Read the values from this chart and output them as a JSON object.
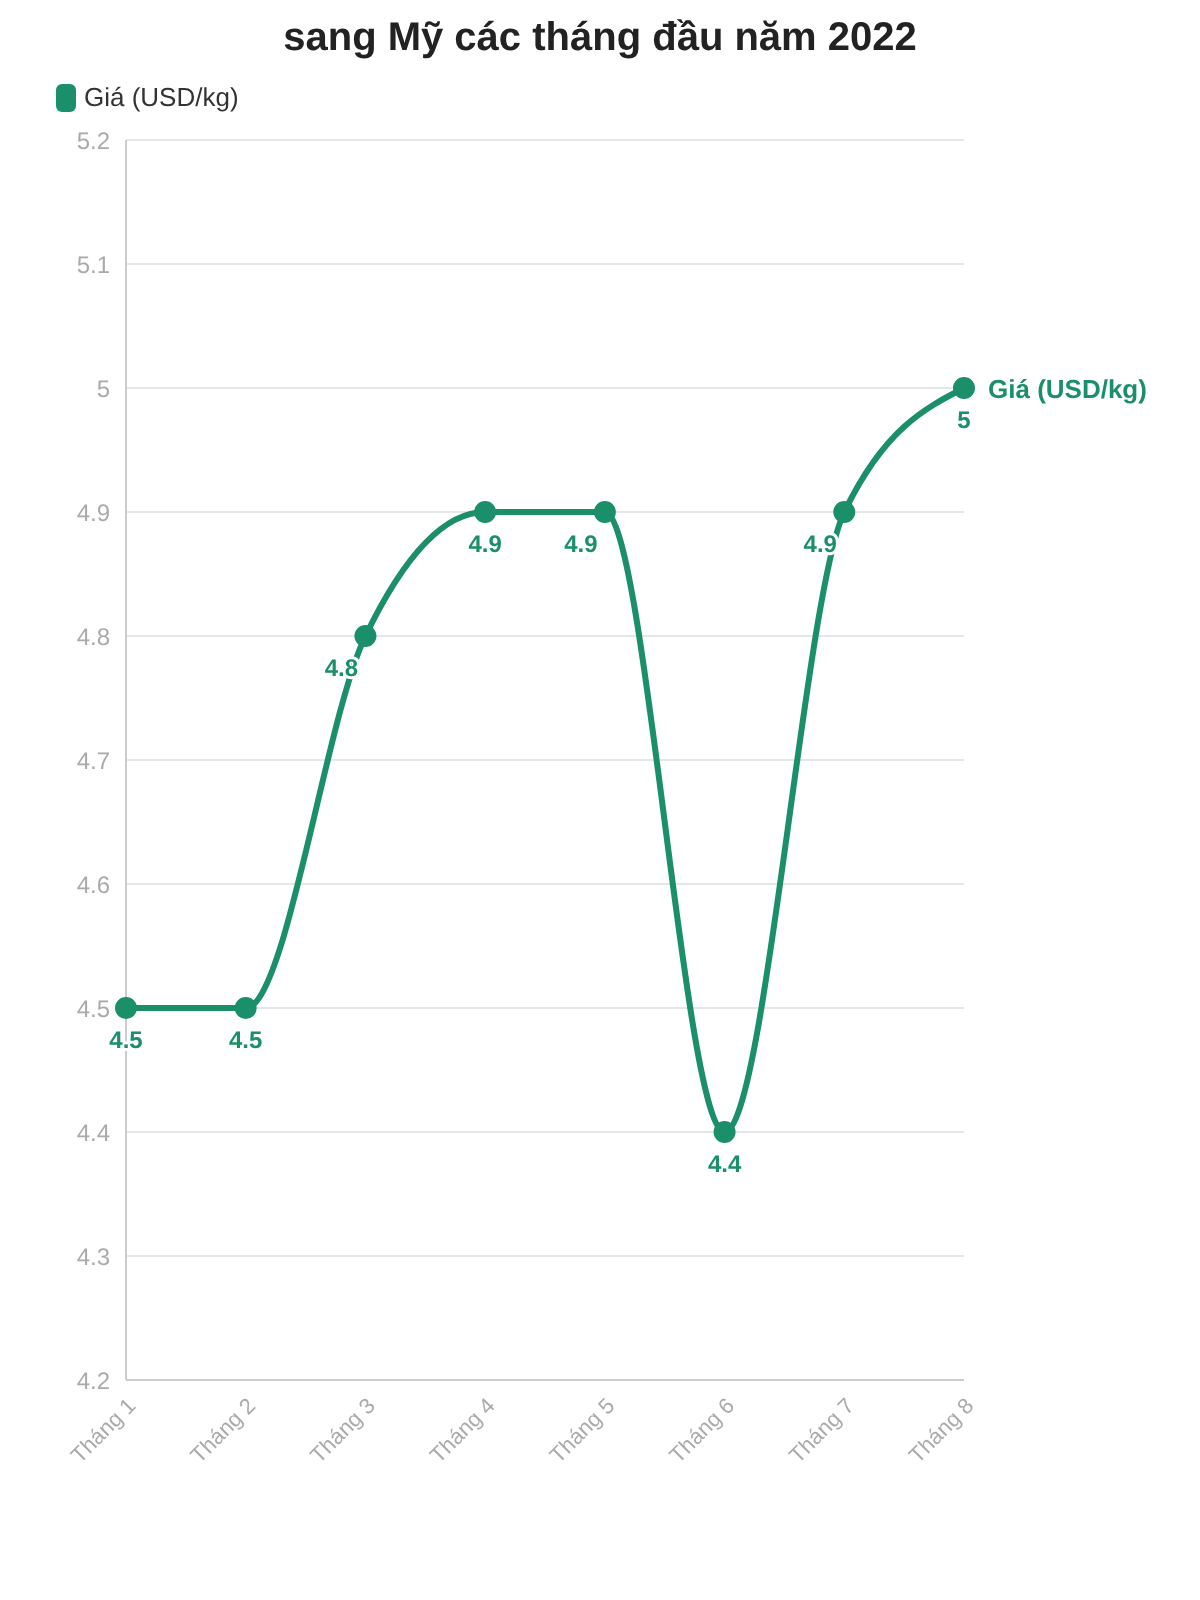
{
  "chart_data": {
    "type": "line",
    "title": "sang Mỹ các tháng đầu năm 2022",
    "categories": [
      "Tháng 1",
      "Tháng 2",
      "Tháng 3",
      "Tháng 4",
      "Tháng 5",
      "Tháng 6",
      "Tháng 7",
      "Tháng 8"
    ],
    "series": [
      {
        "name": "Giá (USD/kg)",
        "color": "#1a8f6a",
        "values": [
          4.5,
          4.5,
          4.8,
          4.9,
          4.9,
          4.4,
          4.9,
          5
        ]
      }
    ],
    "ylim": [
      4.2,
      5.2
    ],
    "yticks": [
      4.2,
      4.3,
      4.4,
      4.5,
      4.6,
      4.7,
      4.8,
      4.9,
      5,
      5.1,
      5.2
    ],
    "grid": "y",
    "legend": "top left",
    "marker": "circle",
    "data_labels": true
  }
}
